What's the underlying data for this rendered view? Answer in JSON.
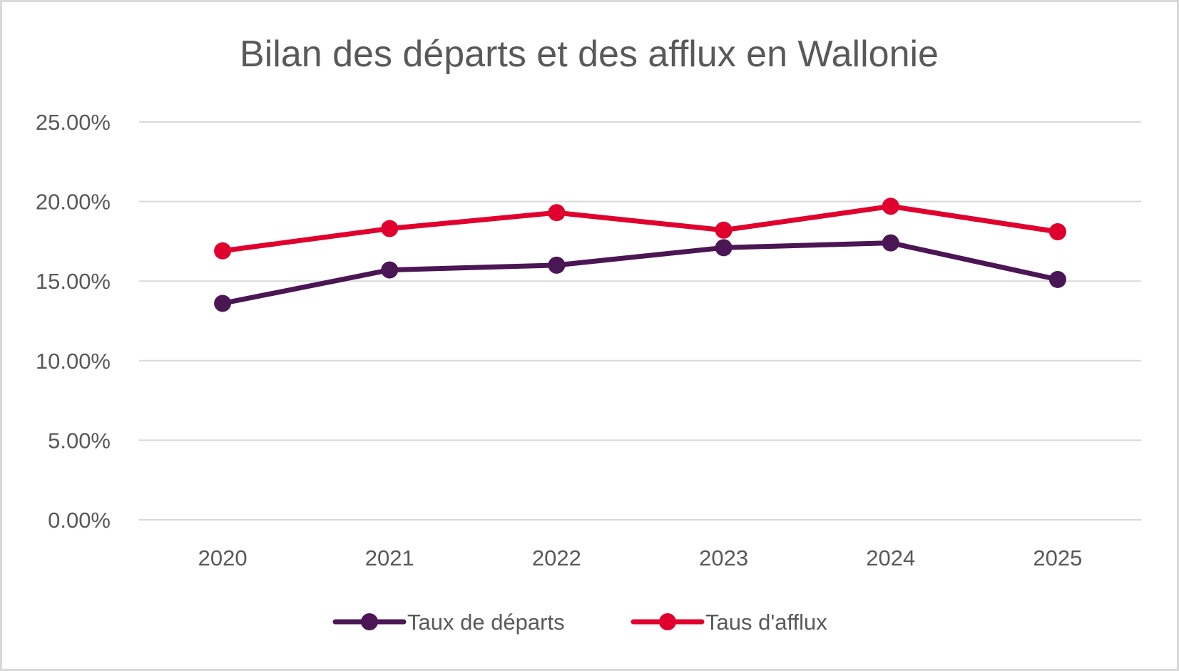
{
  "chart_data": {
    "type": "line",
    "title": "Bilan des départs et des afflux en Wallonie",
    "xlabel": "",
    "ylabel": "",
    "categories": [
      "2020",
      "2021",
      "2022",
      "2023",
      "2024",
      "2025"
    ],
    "ylim": [
      0,
      25
    ],
    "yticks": [
      0,
      5,
      10,
      15,
      20,
      25
    ],
    "ytick_labels": [
      "0.00%",
      "5.00%",
      "10.00%",
      "15.00%",
      "20.00%",
      "25.00%"
    ],
    "grid": true,
    "legend_position": "bottom",
    "series": [
      {
        "name": "Taux de départs",
        "color": "#4b1654",
        "values": [
          13.6,
          15.7,
          16.0,
          17.1,
          17.4,
          15.1
        ]
      },
      {
        "name": "Taus d'afflux",
        "color": "#e0002e",
        "values": [
          16.9,
          18.3,
          19.3,
          18.2,
          19.7,
          18.1
        ]
      }
    ]
  }
}
